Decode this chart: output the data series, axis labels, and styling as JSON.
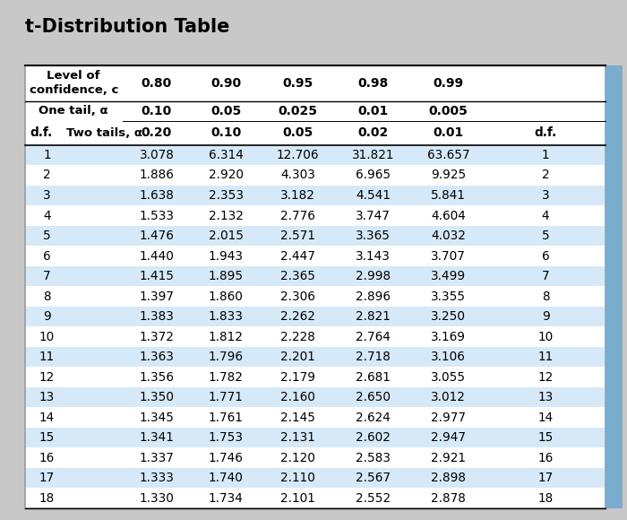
{
  "title": "t-Distribution Table",
  "conf_labels": [
    "0.80",
    "0.90",
    "0.95",
    "0.98",
    "0.99"
  ],
  "one_tail_vals": [
    "0.10",
    "0.05",
    "0.025",
    "0.01",
    "0.005"
  ],
  "two_tail_vals": [
    "0.20",
    "0.10",
    "0.05",
    "0.02",
    "0.01"
  ],
  "df_values": [
    1,
    2,
    3,
    4,
    5,
    6,
    7,
    8,
    9,
    10,
    11,
    12,
    13,
    14,
    15,
    16,
    17,
    18
  ],
  "col_080": [
    3.078,
    1.886,
    1.638,
    1.533,
    1.476,
    1.44,
    1.415,
    1.397,
    1.383,
    1.372,
    1.363,
    1.356,
    1.35,
    1.345,
    1.341,
    1.337,
    1.333,
    1.33
  ],
  "col_090": [
    6.314,
    2.92,
    2.353,
    2.132,
    2.015,
    1.943,
    1.895,
    1.86,
    1.833,
    1.812,
    1.796,
    1.782,
    1.771,
    1.761,
    1.753,
    1.746,
    1.74,
    1.734
  ],
  "col_095": [
    12.706,
    4.303,
    3.182,
    2.776,
    2.571,
    2.447,
    2.365,
    2.306,
    2.262,
    2.228,
    2.201,
    2.179,
    2.16,
    2.145,
    2.131,
    2.12,
    2.11,
    2.101
  ],
  "col_098": [
    31.821,
    6.965,
    4.541,
    3.747,
    3.365,
    3.143,
    2.998,
    2.896,
    2.821,
    2.764,
    2.718,
    2.681,
    2.65,
    2.624,
    2.602,
    2.583,
    2.567,
    2.552
  ],
  "col_099": [
    63.657,
    9.925,
    5.841,
    4.604,
    4.032,
    3.707,
    3.499,
    3.355,
    3.25,
    3.169,
    3.106,
    3.055,
    3.012,
    2.977,
    2.947,
    2.921,
    2.898,
    2.878
  ],
  "row_blue": "#d6e9f8",
  "row_white": "#ffffff",
  "outer_bg": "#c8c8c8",
  "table_bg": "#ffffff",
  "right_bar_color": "#7aacce",
  "title_fontsize": 15,
  "header_fontsize": 9.5,
  "data_fontsize": 9.8
}
